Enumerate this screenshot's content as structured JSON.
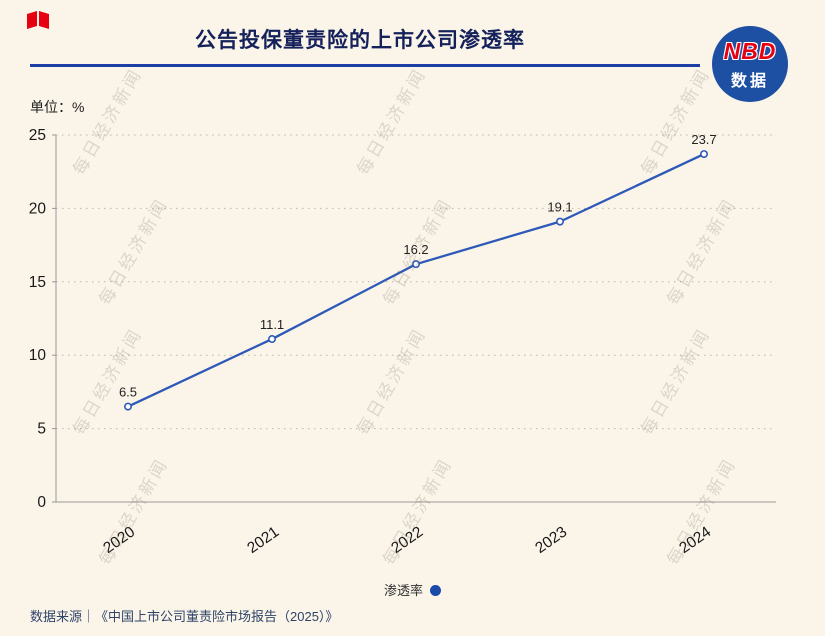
{
  "page": {
    "background": "#FAF4E9"
  },
  "header": {
    "title": "公告投保董责险的上市公司渗透率",
    "title_color": "#14215A",
    "rule_color": "#1C3EA6",
    "badge": {
      "line1": "NBD",
      "line2": "数据",
      "bg": "#1D4FA3",
      "nbd_color": "#E60012"
    }
  },
  "unit_label": "单位：%",
  "watermark_text": "每日经济新闻",
  "legend": {
    "label": "渗透率",
    "dot_color": "#1B4BA8"
  },
  "source": "数据来源｜《中国上市公司董责险市场报告（2025）》",
  "chart_data": {
    "type": "line",
    "categories": [
      "2020",
      "2021",
      "2022",
      "2023",
      "2024"
    ],
    "series": [
      {
        "name": "渗透率",
        "values": [
          6.5,
          11.1,
          16.2,
          19.1,
          23.7
        ]
      }
    ],
    "title": "公告投保董责险的上市公司渗透率",
    "xlabel": "",
    "ylabel": "单位：%",
    "ylim": [
      0,
      25
    ],
    "yticks": [
      0,
      5,
      10,
      15,
      20,
      25
    ],
    "grid": "horizontal-dotted",
    "legend_position": "bottom",
    "line_color": "#2E59B8",
    "marker": "open-circle",
    "data_label_color": "#222222",
    "axis_text_color": "#1A1A1A"
  }
}
